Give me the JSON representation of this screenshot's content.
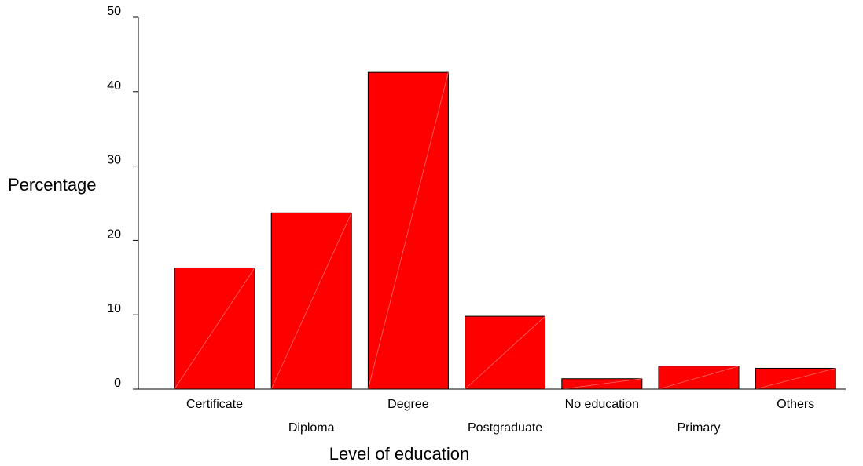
{
  "chart_data": {
    "type": "bar",
    "title": "",
    "xlabel": "Level of education",
    "ylabel": "Percentage",
    "ylim": [
      0,
      50
    ],
    "yticks": [
      0,
      10,
      20,
      30,
      40,
      50
    ],
    "grid": false,
    "bar_color": "#ff0000",
    "categories": [
      "Certificate",
      "Diploma",
      "Degree",
      "Postgraduate",
      "No education",
      "Primary",
      "Others"
    ],
    "values": [
      16.3,
      23.7,
      42.6,
      9.8,
      1.4,
      3.1,
      2.8
    ]
  }
}
